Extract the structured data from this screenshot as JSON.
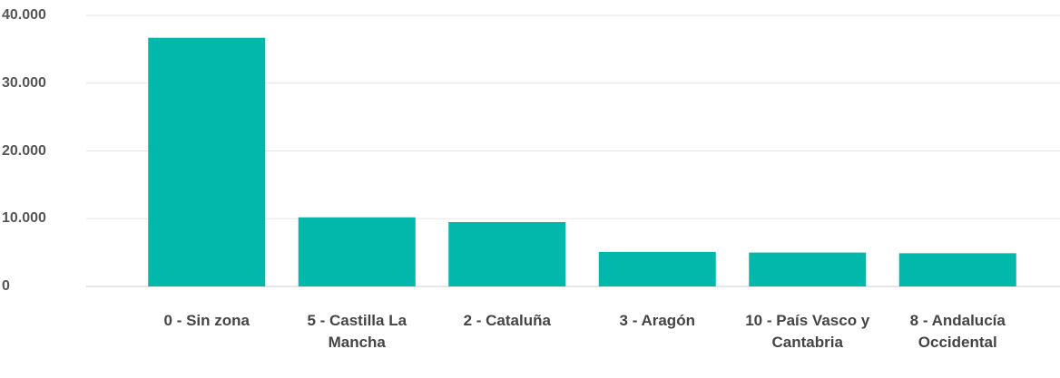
{
  "chart_data": {
    "type": "bar",
    "categories": [
      "0 - Sin zona",
      "5 - Castilla La Mancha",
      "2 - Cataluña",
      "3 - Aragón",
      "10 - País Vasco y Cantabria",
      "8 - Andalucía Occidental"
    ],
    "values": [
      36700,
      10200,
      9500,
      5100,
      5000,
      4900
    ],
    "color": "#01b8aa",
    "ylim": [
      0,
      40000
    ],
    "yticks": [
      0,
      {
        "value": 10000,
        "label": "10.000"
      },
      {
        "value": 20000,
        "label": "20.000"
      },
      {
        "value": 30000,
        "label": "30.000"
      },
      {
        "value": 40000,
        "label": "40.000"
      }
    ],
    "grid": true
  }
}
